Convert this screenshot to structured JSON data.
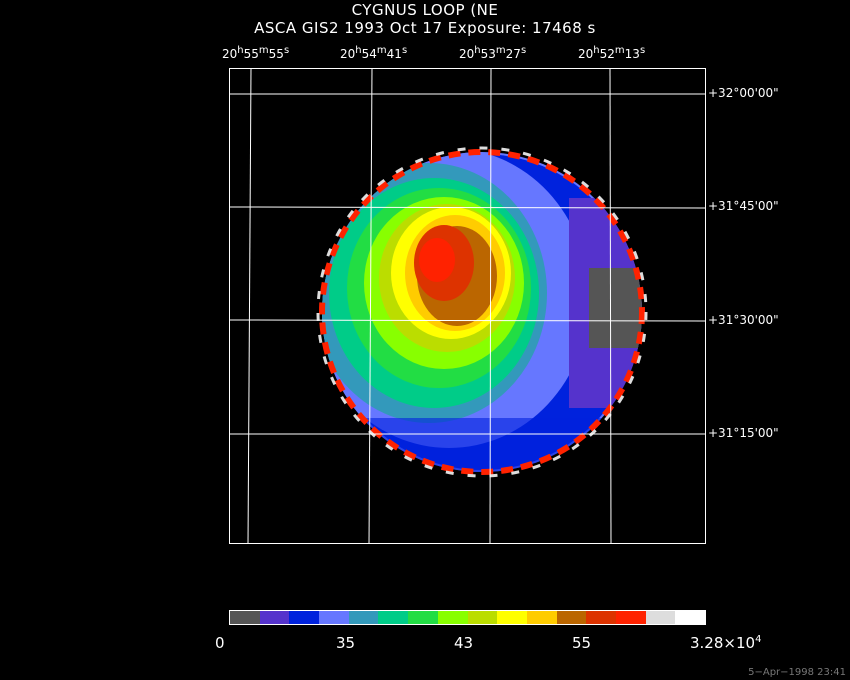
{
  "header": {
    "title": "CYGNUS LOOP (NE",
    "subtitle": "ASCA GIS2   1993 Oct 17    Exposure: 17468 s"
  },
  "ra_labels": [
    {
      "h": "20",
      "m": "55",
      "s": "55"
    },
    {
      "h": "20",
      "m": "54",
      "s": "41"
    },
    {
      "h": "20",
      "m": "53",
      "s": "27"
    },
    {
      "h": "20",
      "m": "52",
      "s": "13"
    }
  ],
  "dec_labels": [
    "+32°00'00\"",
    "+31°45'00\"",
    "+31°30'00\"",
    "+31°15'00\""
  ],
  "colorbar": {
    "colors": [
      "#555555",
      "#5533cc",
      "#0022dd",
      "#6677ff",
      "#3399bb",
      "#00cc88",
      "#22dd44",
      "#88ff00",
      "#bbdd00",
      "#ffff00",
      "#ffcc00",
      "#bb6600",
      "#dd3300",
      "#ff2200",
      "#dddddd",
      "#ffffff"
    ],
    "labels": [
      "0",
      "35",
      "43",
      "55"
    ],
    "max_label": "3.28×10",
    "max_exp": "4"
  },
  "footer": "5−Apr−1998 23:41"
}
